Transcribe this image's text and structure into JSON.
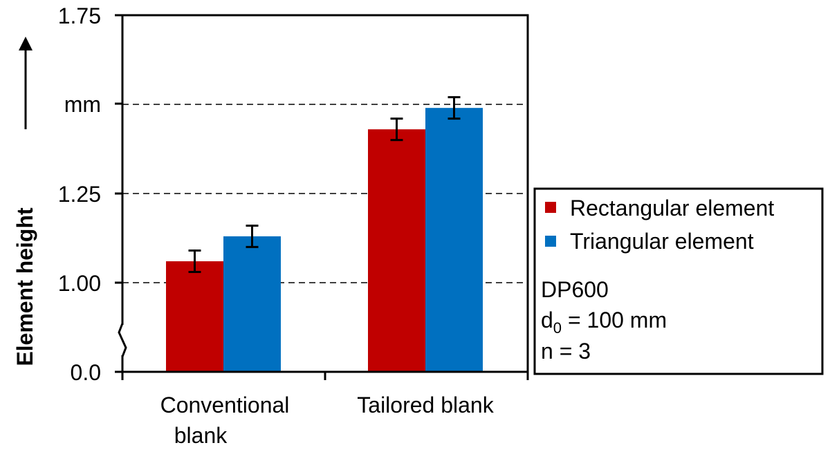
{
  "chart_data": {
    "type": "bar",
    "ylabel": "Element height",
    "y_ticks": [
      "0.0",
      "1.00",
      "1.25",
      "mm",
      "1.75"
    ],
    "ylim": [
      0.75,
      1.75
    ],
    "axis_break": true,
    "grid": "dashed horizontal",
    "categories": [
      {
        "lines": [
          "Conventional",
          "blank"
        ]
      },
      {
        "lines": [
          "Tailored blank"
        ]
      }
    ],
    "series": [
      {
        "name": "Rectangular element",
        "color": "#c00000",
        "values": [
          1.06,
          1.43
        ],
        "errors": [
          0.03,
          0.03
        ]
      },
      {
        "name": "Triangular element",
        "color": "#0070c0",
        "values": [
          1.13,
          1.49
        ],
        "errors": [
          0.03,
          0.03
        ]
      }
    ],
    "legend_position": "right",
    "annotation": {
      "material": "DP600",
      "d_symbol": "d",
      "d_subscript": "0",
      "d_value": " = 100 mm",
      "n": "n = 3"
    }
  }
}
